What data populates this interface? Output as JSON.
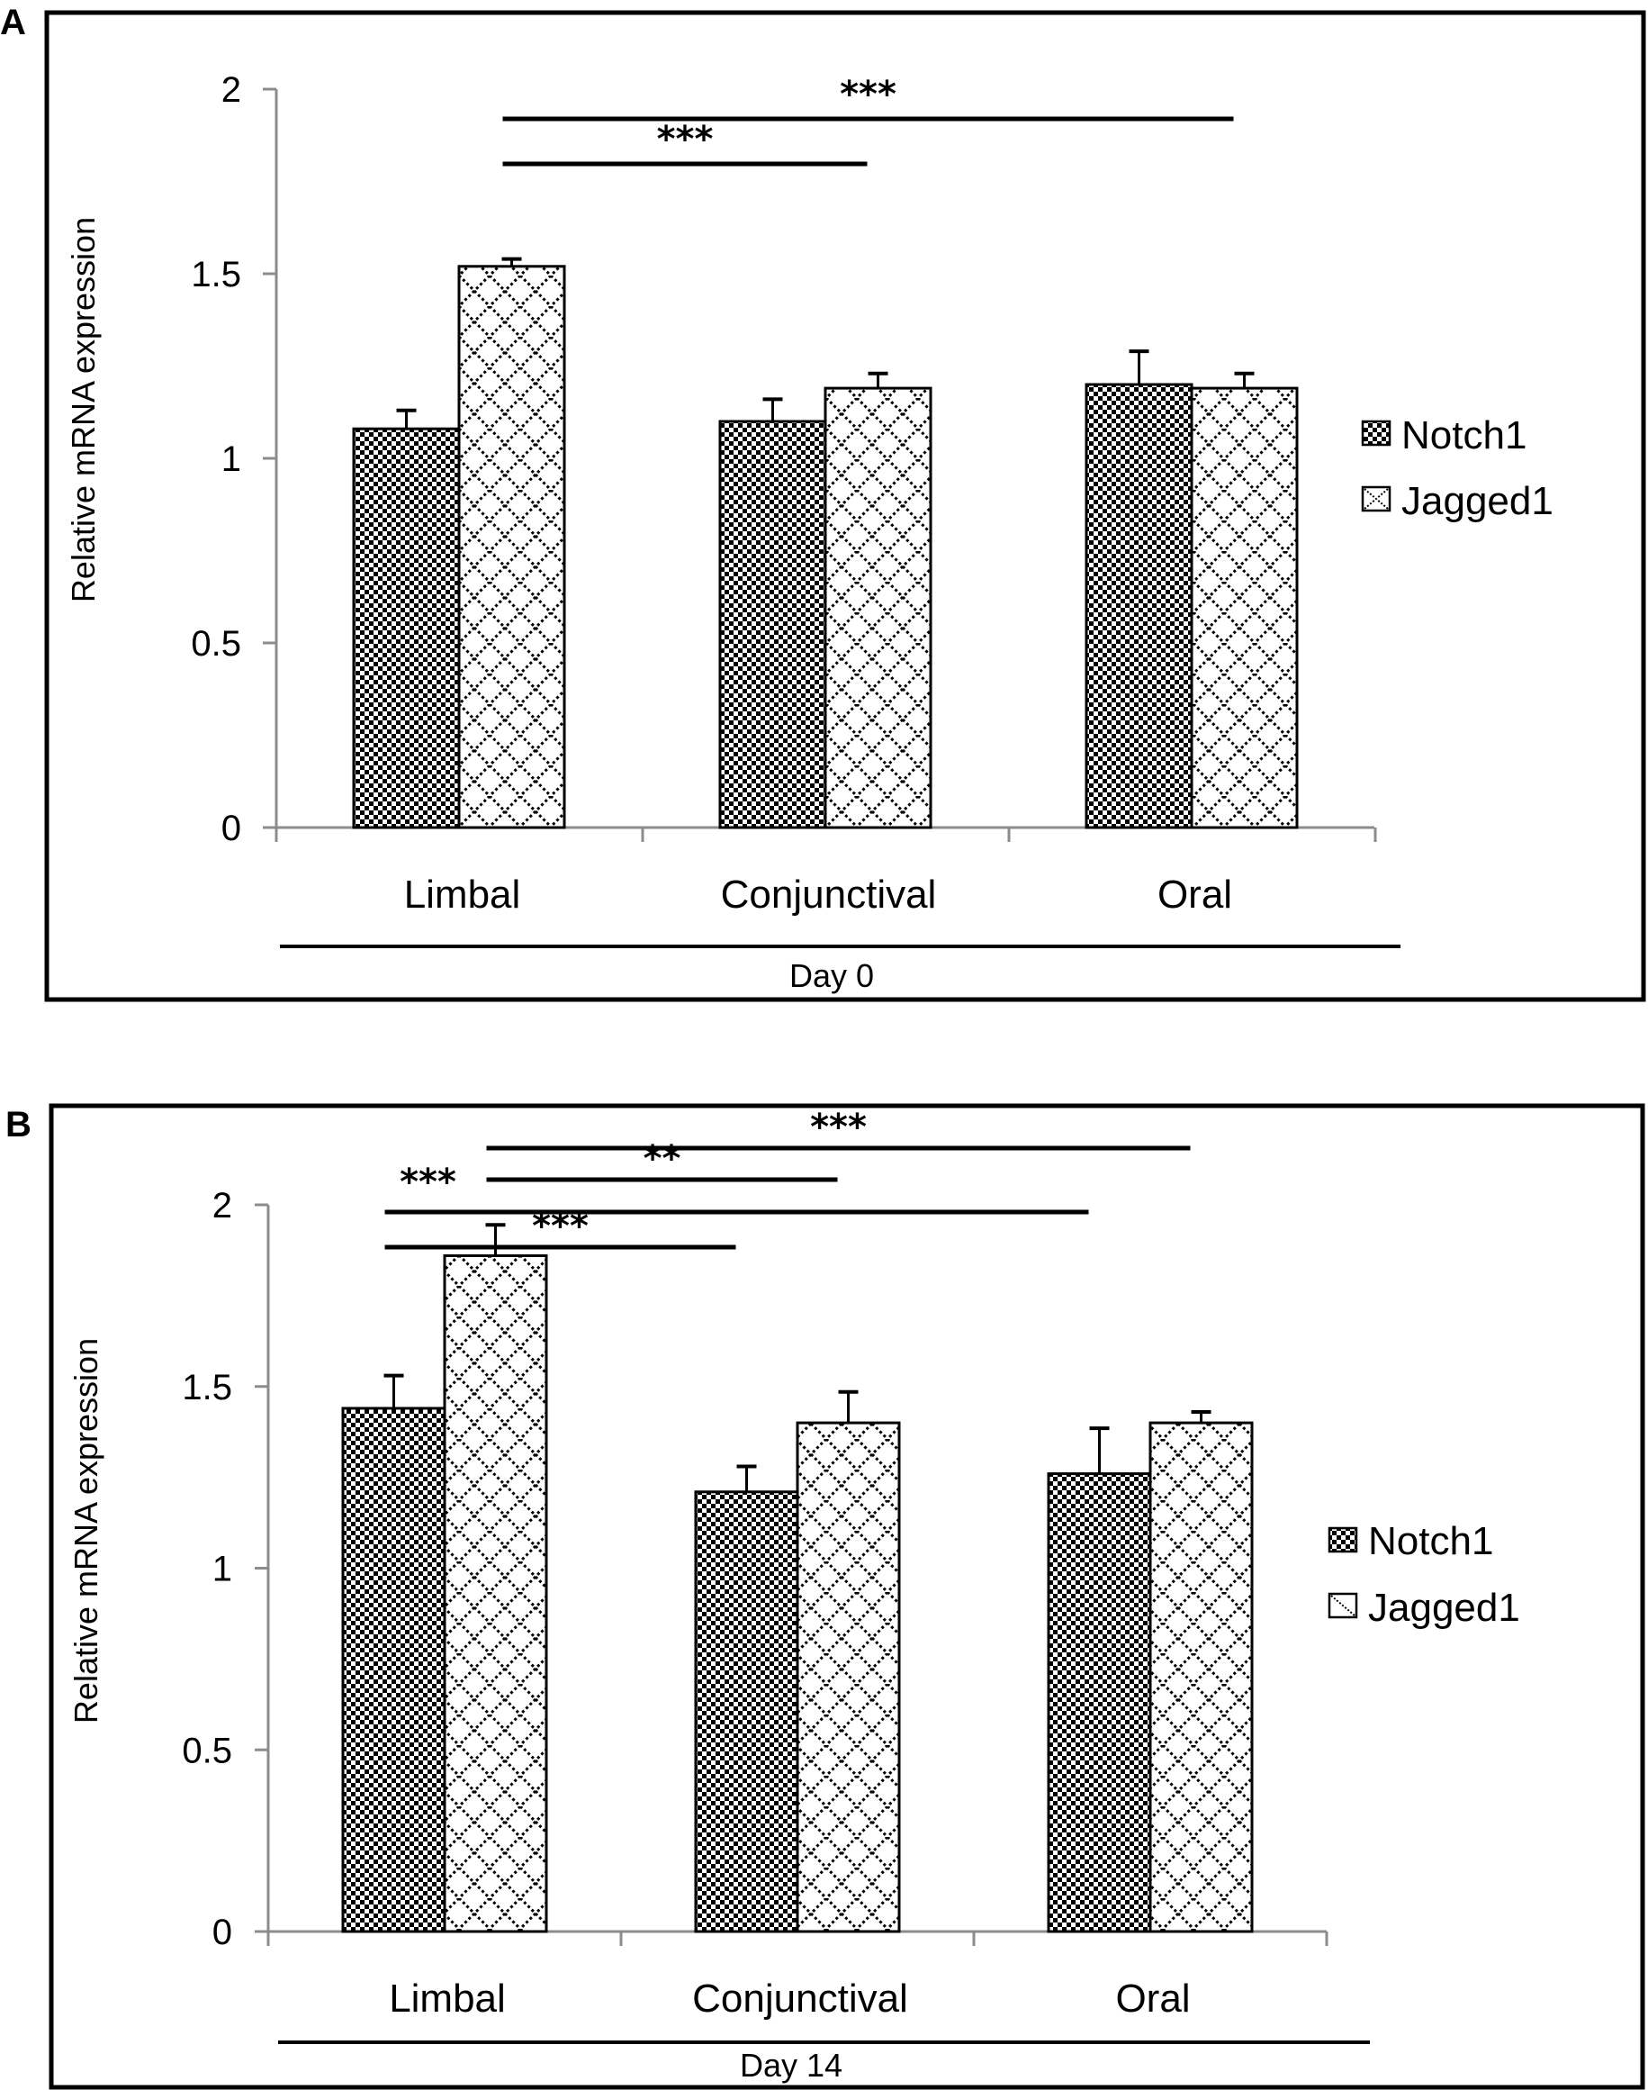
{
  "figure": {
    "panels": [
      "A",
      "B"
    ]
  },
  "colors": {
    "bar_stroke": "#000000",
    "axis": "#8c8c8c",
    "text": "#000000",
    "background": "#ffffff"
  },
  "chart_data": [
    {
      "panel": "A",
      "type": "bar",
      "title": "",
      "group_label": "Day 0",
      "xlabel": "",
      "ylabel": "Relative mRNA expression",
      "ylim": [
        0,
        2
      ],
      "yticks": [
        0,
        0.5,
        1,
        1.5,
        2
      ],
      "ytick_labels": [
        "0",
        "0.5",
        "1",
        "1.5",
        "2"
      ],
      "grid": false,
      "legend_position": "right",
      "categories": [
        "Limbal",
        "Conjunctival",
        "Oral"
      ],
      "series": [
        {
          "name": "Notch1",
          "pattern": "checkerboard",
          "values": [
            1.08,
            1.1,
            1.2
          ],
          "errors": [
            0.05,
            0.06,
            0.09
          ]
        },
        {
          "name": "Jagged1",
          "pattern": "diamond-lattice",
          "values": [
            1.52,
            1.19,
            1.19
          ],
          "errors": [
            0.02,
            0.04,
            0.04
          ]
        }
      ],
      "significance": [
        {
          "from": {
            "category": "Limbal",
            "series": "Jagged1"
          },
          "to": {
            "category": "Oral",
            "series": "Jagged1"
          },
          "label": "***",
          "level": 1
        },
        {
          "from": {
            "category": "Limbal",
            "series": "Jagged1"
          },
          "to": {
            "category": "Conjunctival",
            "series": "Jagged1"
          },
          "label": "***",
          "level": 2
        }
      ]
    },
    {
      "panel": "B",
      "type": "bar",
      "title": "",
      "group_label": "Day 14",
      "xlabel": "",
      "ylabel": "Relative mRNA expression",
      "ylim": [
        0,
        2
      ],
      "yticks": [
        0,
        0.5,
        1,
        1.5,
        2
      ],
      "ytick_labels": [
        "0",
        "0.5",
        "1",
        "1.5",
        "2"
      ],
      "grid": false,
      "legend_position": "right",
      "categories": [
        "Limbal",
        "Conjunctival",
        "Oral"
      ],
      "series": [
        {
          "name": "Notch1",
          "pattern": "checkerboard",
          "values": [
            1.44,
            1.21,
            1.26
          ],
          "errors": [
            0.09,
            0.07,
            0.125
          ]
        },
        {
          "name": "Jagged1",
          "pattern": "diamond-lattice",
          "values": [
            1.86,
            1.4,
            1.4
          ],
          "errors": [
            0.085,
            0.085,
            0.03
          ]
        }
      ],
      "significance": [
        {
          "from": {
            "category": "Limbal",
            "series": "Jagged1"
          },
          "to": {
            "category": "Oral",
            "series": "Jagged1"
          },
          "label": "***",
          "level": 1
        },
        {
          "from": {
            "category": "Limbal",
            "series": "Jagged1"
          },
          "to": {
            "category": "Conjunctival",
            "series": "Jagged1"
          },
          "label": "**",
          "level": 2
        },
        {
          "from": {
            "category": "Limbal",
            "series": "Notch1"
          },
          "to": {
            "category": "Oral",
            "series": "Notch1"
          },
          "label": "***",
          "level": 3
        },
        {
          "from": {
            "category": "Limbal",
            "series": "Notch1"
          },
          "to": {
            "category": "Conjunctival",
            "series": "Notch1"
          },
          "label": "***",
          "level": 4
        }
      ]
    }
  ]
}
